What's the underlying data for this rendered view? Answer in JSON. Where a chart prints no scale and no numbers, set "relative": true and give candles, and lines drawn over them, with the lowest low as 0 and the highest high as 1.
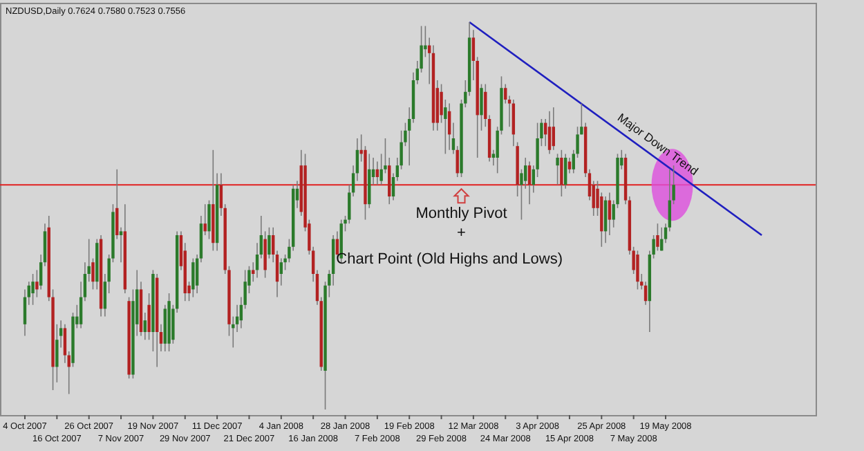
{
  "chart_data": {
    "type": "candlestick",
    "title": "NZDUSD,Daily 0.7624 0.7580 0.7523 0.7556",
    "relative": true,
    "categories": [
      "4 Oct 2007",
      null,
      null,
      null,
      null,
      null,
      null,
      null,
      "16 Oct 2007",
      null,
      null,
      null,
      null,
      null,
      null,
      null,
      "26 Oct 2007",
      null,
      null,
      null,
      null,
      null,
      null,
      null,
      "7 Nov 2007",
      null,
      null,
      null,
      null,
      null,
      null,
      null,
      "19 Nov 2007",
      null,
      null,
      null,
      null,
      null,
      null,
      null,
      "29 Nov 2007",
      null,
      null,
      null,
      null,
      null,
      null,
      null,
      "11 Dec 2007",
      null,
      null,
      null,
      null,
      null,
      null,
      null,
      "21 Dec 2007",
      null,
      null,
      null,
      null,
      null,
      null,
      null,
      "4 Jan 2008",
      null,
      null,
      null,
      null,
      null,
      null,
      null,
      "16 Jan 2008",
      null,
      null,
      null,
      null,
      null,
      null,
      null,
      "28 Jan 2008",
      null,
      null,
      null,
      null,
      null,
      null,
      null,
      "7 Feb 2008",
      null,
      null,
      null,
      null,
      null,
      null,
      null,
      "19 Feb 2008",
      null,
      null,
      null,
      null,
      null,
      null,
      null,
      "29 Feb 2008",
      null,
      null,
      null,
      null,
      null,
      null,
      null,
      "12 Mar 2008",
      null,
      null,
      null,
      null,
      null,
      null,
      null,
      "24 Mar 2008",
      null,
      null,
      null,
      null,
      null,
      null,
      null,
      "3 Apr 2008",
      null,
      null,
      null,
      null,
      null,
      null,
      null,
      "15 Apr 2008",
      null,
      null,
      null,
      null,
      null,
      null,
      null,
      "25 Apr 2008",
      null,
      null,
      null,
      null,
      null,
      null,
      null,
      "7 May 2008",
      null,
      null,
      null,
      null,
      null,
      null,
      null,
      "19 May 2008",
      null,
      null,
      null,
      null,
      null,
      null,
      null,
      null,
      null,
      null,
      null,
      null,
      null,
      null,
      null,
      null,
      null,
      null,
      null,
      null,
      null,
      null,
      null,
      null,
      null,
      null,
      null,
      null,
      null,
      null,
      null,
      null,
      null,
      null
    ],
    "colors": [
      "#2b7a2b",
      "#2b7a2b",
      "#2b7a2b",
      "#b22222",
      "#2b7a2b",
      "#2b7a2b",
      "#b22222",
      "#b22222",
      "#2b7a2b",
      "#2b7a2b",
      "#b22222",
      "#b22222",
      "#2b7a2b",
      "#2b7a2b",
      "#2b7a2b",
      "#2b7a2b",
      "#2b7a2b",
      "#b22222",
      "#2b7a2b",
      "#b22222",
      "#2b7a2b",
      "#2b7a2b",
      "#2b7a2b",
      "#b22222",
      "#2b7a2b",
      "#b22222",
      "#b22222",
      "#2b7a2b",
      "#2b7a2b",
      "#b22222",
      "#2b7a2b",
      "#b22222",
      "#2b7a2b",
      "#b22222",
      "#b22222",
      "#2b7a2b",
      "#2b7a2b",
      "#2b7a2b",
      "#2b7a2b",
      "#b22222",
      "#b22222",
      "#b22222",
      "#2b7a2b",
      "#2b7a2b",
      "#2b7a2b",
      "#b22222",
      "#2b7a2b",
      "#b22222",
      "#2b7a2b",
      "#b22222",
      "#b22222",
      "#b22222",
      "#2b7a2b",
      "#2b7a2b",
      "#2b7a2b",
      "#2b7a2b",
      "#2b7a2b",
      "#b22222",
      "#2b7a2b",
      "#2b7a2b",
      "#b22222",
      "#2b7a2b",
      "#b22222",
      "#b22222",
      "#2b7a2b",
      "#2b7a2b",
      "#2b7a2b",
      "#2b7a2b",
      "#2b7a2b",
      "#b22222",
      "#b22222",
      "#b22222",
      "#b22222",
      "#b22222",
      "#b22222",
      "#2b7a2b",
      "#2b7a2b",
      "#2b7a2b",
      "#b22222",
      "#2b7a2b",
      "#2b7a2b",
      "#2b7a2b",
      "#2b7a2b",
      "#2b7a2b",
      "#b22222",
      "#b22222",
      "#2b7a2b",
      "#2b7a2b",
      "#b22222",
      "#2b7a2b",
      "#2b7a2b",
      "#b22222",
      "#2b7a2b",
      "#2b7a2b",
      "#2b7a2b",
      "#2b7a2b",
      "#2b7a2b",
      "#2b7a2b",
      "#2b7a2b",
      "#2b7a2b",
      "#2b7a2b",
      "#b22222",
      "#b22222",
      "#b22222",
      "#b22222",
      "#2b7a2b",
      "#b22222",
      "#2b7a2b",
      "#b22222",
      "#2b7a2b",
      "#2b7a2b",
      "#2b7a2b",
      "#b22222",
      "#b22222",
      "#2b7a2b",
      "#b22222",
      "#b22222",
      "#2b7a2b",
      "#2b7a2b",
      "#2b7a2b",
      "#b22222",
      "#b22222",
      "#b22222",
      "#b22222",
      "#2b7a2b",
      "#2b7a2b",
      "#b22222",
      "#2b7a2b",
      "#2b7a2b",
      "#2b7a2b",
      "#b22222",
      "#b22222",
      "#b22222",
      "#2b7a2b",
      "#b22222",
      "#2b7a2b",
      "#b22222",
      "#2b7a2b",
      "#2b7a2b",
      "#2b7a2b",
      "#b22222",
      "#b22222",
      "#b22222",
      "#b22222",
      "#b22222",
      "#2b7a2b",
      "#b22222",
      "#2b7a2b",
      "#2b7a2b",
      "#2b7a2b",
      "#b22222",
      "#b22222",
      "#b22222",
      "#b22222",
      "#b22222",
      "#b22222",
      "#2b7a2b",
      "#2b7a2b",
      "#b22222",
      "#2b7a2b",
      "#2b7a2b",
      "#2b7a2b",
      "#2b7a2b",
      null,
      null,
      null,
      null,
      null,
      null,
      null,
      null,
      null,
      null,
      null,
      null,
      null,
      null,
      null,
      null,
      null,
      null,
      null,
      null,
      null,
      null,
      null,
      null,
      null,
      null,
      null,
      null,
      null,
      null,
      null,
      null
    ],
    "ohlc": [
      [
        0.22,
        0.31,
        0.19,
        0.29
      ],
      [
        0.29,
        0.33,
        0.27,
        0.32
      ],
      [
        0.3,
        0.35,
        0.27,
        0.33
      ],
      [
        0.33,
        0.36,
        0.29,
        0.31
      ],
      [
        0.32,
        0.4,
        0.31,
        0.38
      ],
      [
        0.38,
        0.48,
        0.37,
        0.46
      ],
      [
        0.47,
        0.5,
        0.28,
        0.29
      ],
      [
        0.29,
        0.31,
        0.05,
        0.11
      ],
      [
        0.11,
        0.22,
        0.07,
        0.18
      ],
      [
        0.19,
        0.23,
        0.16,
        0.21
      ],
      [
        0.21,
        0.22,
        0.12,
        0.14
      ],
      [
        0.14,
        0.15,
        0.04,
        0.11
      ],
      [
        0.12,
        0.25,
        0.11,
        0.24
      ],
      [
        0.22,
        0.27,
        0.21,
        0.24
      ],
      [
        0.22,
        0.33,
        0.21,
        0.29
      ],
      [
        0.29,
        0.38,
        0.28,
        0.35
      ],
      [
        0.35,
        0.44,
        0.33,
        0.37
      ],
      [
        0.38,
        0.39,
        0.31,
        0.33
      ],
      [
        0.33,
        0.44,
        0.31,
        0.43
      ],
      [
        0.44,
        0.45,
        0.24,
        0.26
      ],
      [
        0.26,
        0.35,
        0.24,
        0.33
      ],
      [
        0.33,
        0.4,
        0.3,
        0.39
      ],
      [
        0.39,
        0.53,
        0.38,
        0.51
      ],
      [
        0.52,
        0.62,
        0.44,
        0.45
      ],
      [
        0.45,
        0.47,
        0.38,
        0.46
      ],
      [
        0.46,
        0.53,
        0.3,
        0.31
      ],
      [
        0.28,
        0.29,
        0.08,
        0.09
      ],
      [
        0.09,
        0.31,
        0.08,
        0.28
      ],
      [
        0.22,
        0.36,
        0.19,
        0.31
      ],
      [
        0.31,
        0.33,
        0.19,
        0.2
      ],
      [
        0.2,
        0.25,
        0.18,
        0.23
      ],
      [
        0.27,
        0.3,
        0.18,
        0.2
      ],
      [
        0.2,
        0.36,
        0.15,
        0.35
      ],
      [
        0.34,
        0.35,
        0.11,
        0.2
      ],
      [
        0.2,
        0.22,
        0.15,
        0.17
      ],
      [
        0.17,
        0.27,
        0.15,
        0.26
      ],
      [
        0.17,
        0.3,
        0.15,
        0.28
      ],
      [
        0.18,
        0.27,
        0.17,
        0.26
      ],
      [
        0.26,
        0.46,
        0.25,
        0.45
      ],
      [
        0.45,
        0.46,
        0.36,
        0.37
      ],
      [
        0.41,
        0.43,
        0.28,
        0.3
      ],
      [
        0.32,
        0.33,
        0.28,
        0.3
      ],
      [
        0.31,
        0.39,
        0.29,
        0.38
      ],
      [
        0.32,
        0.4,
        0.3,
        0.39
      ],
      [
        0.39,
        0.5,
        0.38,
        0.48
      ],
      [
        0.48,
        0.53,
        0.45,
        0.46
      ],
      [
        0.46,
        0.54,
        0.44,
        0.53
      ],
      [
        0.53,
        0.67,
        0.41,
        0.43
      ],
      [
        0.43,
        0.61,
        0.41,
        0.58
      ],
      [
        0.58,
        0.61,
        0.5,
        0.52
      ],
      [
        0.52,
        0.53,
        0.35,
        0.36
      ],
      [
        0.36,
        0.37,
        0.19,
        0.22
      ],
      [
        0.21,
        0.24,
        0.16,
        0.22
      ],
      [
        0.22,
        0.27,
        0.2,
        0.24
      ],
      [
        0.23,
        0.29,
        0.21,
        0.27
      ],
      [
        0.27,
        0.36,
        0.26,
        0.33
      ],
      [
        0.32,
        0.37,
        0.3,
        0.36
      ],
      [
        0.36,
        0.38,
        0.33,
        0.35
      ],
      [
        0.36,
        0.43,
        0.34,
        0.4
      ],
      [
        0.4,
        0.5,
        0.39,
        0.45
      ],
      [
        0.44,
        0.46,
        0.34,
        0.36
      ],
      [
        0.4,
        0.47,
        0.39,
        0.45
      ],
      [
        0.45,
        0.47,
        0.38,
        0.4
      ],
      [
        0.4,
        0.41,
        0.29,
        0.33
      ],
      [
        0.35,
        0.39,
        0.32,
        0.38
      ],
      [
        0.38,
        0.4,
        0.36,
        0.39
      ],
      [
        0.39,
        0.44,
        0.38,
        0.42
      ],
      [
        0.42,
        0.58,
        0.41,
        0.57
      ],
      [
        0.54,
        0.59,
        0.52,
        0.57
      ],
      [
        0.63,
        0.67,
        0.5,
        0.51
      ],
      [
        0.63,
        0.66,
        0.46,
        0.47
      ],
      [
        0.48,
        0.49,
        0.4,
        0.41
      ],
      [
        0.41,
        0.42,
        0.33,
        0.35
      ],
      [
        0.35,
        0.36,
        0.27,
        0.28
      ],
      [
        0.28,
        0.29,
        0.1,
        0.11
      ],
      [
        0.1,
        0.33,
        0,
        0.32
      ],
      [
        0.32,
        0.36,
        0.29,
        0.35
      ],
      [
        0.35,
        0.45,
        0.32,
        0.44
      ],
      [
        0.44,
        0.46,
        0.39,
        0.4
      ],
      [
        0.39,
        0.49,
        0.38,
        0.48
      ],
      [
        0.48,
        0.5,
        0.46,
        0.49
      ],
      [
        0.49,
        0.58,
        0.48,
        0.56
      ],
      [
        0.56,
        0.63,
        0.55,
        0.61
      ],
      [
        0.61,
        0.7,
        0.59,
        0.67
      ],
      [
        0.67,
        0.71,
        0.64,
        0.66
      ],
      [
        0.67,
        0.68,
        0.49,
        0.53
      ],
      [
        0.53,
        0.66,
        0.52,
        0.62
      ],
      [
        0.6,
        0.65,
        0.58,
        0.62
      ],
      [
        0.62,
        0.64,
        0.58,
        0.6
      ],
      [
        0.59,
        0.66,
        0.58,
        0.62
      ],
      [
        0.62,
        0.7,
        0.61,
        0.63
      ],
      [
        0.63,
        0.65,
        0.53,
        0.55
      ],
      [
        0.55,
        0.61,
        0.54,
        0.6
      ],
      [
        0.6,
        0.65,
        0.59,
        0.63
      ],
      [
        0.63,
        0.72,
        0.62,
        0.69
      ],
      [
        0.69,
        0.74,
        0.68,
        0.72
      ],
      [
        0.72,
        0.78,
        0.63,
        0.75
      ],
      [
        0.75,
        0.87,
        0.74,
        0.85
      ],
      [
        0.85,
        0.9,
        0.84,
        0.88
      ],
      [
        0.88,
        0.99,
        0.87,
        0.94
      ],
      [
        0.93,
        0.99,
        0.91,
        0.94
      ],
      [
        0.94,
        0.96,
        0.84,
        0.92
      ],
      [
        0.92,
        0.94,
        0.72,
        0.74
      ],
      [
        0.83,
        0.85,
        0.72,
        0.74
      ],
      [
        0.82,
        0.84,
        0.74,
        0.76
      ],
      [
        0.75,
        0.8,
        0.66,
        0.78
      ],
      [
        0.77,
        0.79,
        0.67,
        0.71
      ],
      [
        0.67,
        0.74,
        0.66,
        0.7
      ],
      [
        0.67,
        0.68,
        0.6,
        0.61
      ],
      [
        0.61,
        0.8,
        0.6,
        0.79
      ],
      [
        0.79,
        0.85,
        0.78,
        0.82
      ],
      [
        0.82,
        1,
        0.81,
        0.96
      ],
      [
        0.96,
        0.98,
        0.85,
        0.9
      ],
      [
        0.9,
        0.91,
        0.65,
        0.76
      ],
      [
        0.76,
        0.84,
        0.72,
        0.83
      ],
      [
        0.82,
        0.84,
        0.73,
        0.75
      ],
      [
        0.75,
        0.76,
        0.64,
        0.65
      ],
      [
        0.65,
        0.67,
        0.63,
        0.66
      ],
      [
        0.65,
        0.73,
        0.61,
        0.72
      ],
      [
        0.72,
        0.86,
        0.71,
        0.83
      ],
      [
        0.83,
        0.84,
        0.79,
        0.8
      ],
      [
        0.8,
        0.81,
        0.73,
        0.79
      ],
      [
        0.79,
        0.8,
        0.68,
        0.71
      ],
      [
        0.68,
        0.69,
        0.55,
        0.58
      ],
      [
        0.58,
        0.62,
        0.49,
        0.61
      ],
      [
        0.59,
        0.65,
        0.57,
        0.63
      ],
      [
        0.63,
        0.64,
        0.53,
        0.58
      ],
      [
        0.58,
        0.63,
        0.56,
        0.62
      ],
      [
        0.62,
        0.74,
        0.6,
        0.7
      ],
      [
        0.7,
        0.75,
        0.68,
        0.74
      ],
      [
        0.74,
        0.75,
        0.68,
        0.71
      ],
      [
        0.73,
        0.77,
        0.66,
        0.67
      ],
      [
        0.73,
        0.78,
        0.67,
        0.68
      ],
      [
        0.63,
        0.66,
        0.58,
        0.65
      ],
      [
        0.65,
        0.67,
        0.55,
        0.58
      ],
      [
        0.58,
        0.66,
        0.57,
        0.65
      ],
      [
        0.64,
        0.65,
        0.61,
        0.62
      ],
      [
        0.62,
        0.67,
        0.61,
        0.66
      ],
      [
        0.66,
        0.73,
        0.65,
        0.71
      ],
      [
        0.71,
        0.79,
        0.71,
        0.73
      ],
      [
        0.73,
        0.74,
        0.6,
        0.61
      ],
      [
        0.61,
        0.62,
        0.54,
        0.55
      ],
      [
        0.58,
        0.59,
        0.5,
        0.52
      ],
      [
        0.57,
        0.59,
        0.5,
        0.52
      ],
      [
        0.55,
        0.56,
        0.42,
        0.46
      ],
      [
        0.46,
        0.55,
        0.43,
        0.54
      ],
      [
        0.54,
        0.56,
        0.45,
        0.49
      ],
      [
        0.49,
        0.54,
        0.47,
        0.53
      ],
      [
        0.53,
        0.66,
        0.52,
        0.65
      ],
      [
        0.63,
        0.67,
        0.62,
        0.65
      ],
      [
        0.65,
        0.66,
        0.53,
        0.54
      ],
      [
        0.54,
        0.55,
        0.4,
        0.41
      ],
      [
        0.41,
        0.42,
        0.35,
        0.36
      ],
      [
        0.4,
        0.41,
        0.31,
        0.33
      ],
      [
        0.33,
        0.35,
        0.31,
        0.32
      ],
      [
        0.32,
        0.33,
        0.27,
        0.28
      ],
      [
        0.28,
        0.41,
        0.2,
        0.4
      ],
      [
        0.4,
        0.45,
        0.39,
        0.44
      ],
      [
        0.45,
        0.48,
        0.41,
        0.42
      ],
      [
        0.41,
        0.47,
        0.41,
        0.44
      ],
      [
        0.44,
        0.48,
        0.43,
        0.47
      ],
      [
        0.47,
        0.62,
        0.46,
        0.54
      ],
      [
        0.54,
        0.63,
        0.53,
        0.58
      ],
      null,
      null,
      null,
      null,
      null,
      null,
      null,
      null,
      null,
      null,
      null,
      null,
      null,
      null,
      null,
      null,
      null,
      null,
      null,
      null,
      null,
      null,
      null,
      null,
      null,
      null,
      null,
      null,
      null,
      null,
      null,
      null
    ],
    "series": [
      {
        "type": "line",
        "name": "Major Down Trend",
        "color": "#1f1fbf",
        "values": [
          null,
          null,
          null,
          null,
          null,
          null,
          null,
          null,
          null,
          null,
          null,
          null,
          null,
          null,
          null,
          null,
          null,
          null,
          null,
          null,
          null,
          null,
          null,
          null,
          null,
          null,
          null,
          null,
          null,
          null,
          null,
          null,
          null,
          null,
          null,
          null,
          null,
          null,
          null,
          null,
          null,
          null,
          null,
          null,
          null,
          null,
          null,
          null,
          null,
          null,
          null,
          null,
          null,
          null,
          null,
          null,
          null,
          null,
          null,
          null,
          null,
          null,
          null,
          null,
          null,
          null,
          null,
          null,
          null,
          null,
          null,
          null,
          null,
          null,
          null,
          null,
          null,
          null,
          null,
          null,
          null,
          null,
          null,
          null,
          null,
          null,
          null,
          null,
          null,
          null,
          null,
          null,
          null,
          null,
          null,
          null,
          null,
          null,
          null,
          null,
          null,
          null,
          null,
          null,
          null,
          null,
          null,
          null,
          null,
          null,
          null,
          1,
          null,
          null,
          null,
          null,
          null,
          null,
          null,
          null,
          null,
          null,
          null,
          null,
          null,
          null,
          null,
          null,
          null,
          null,
          null,
          null,
          null,
          null,
          null,
          null,
          null,
          null,
          null,
          null,
          null,
          null,
          null,
          null,
          null,
          null,
          null,
          null,
          null,
          null,
          null,
          null,
          null,
          null,
          null,
          null,
          null,
          null,
          null,
          null,
          null,
          null,
          null,
          null,
          null,
          null,
          null,
          null,
          null,
          null,
          null,
          null,
          null,
          null,
          null,
          null,
          null,
          null,
          null,
          null,
          null,
          null,
          null,
          null,
          0.45,
          null,
          null,
          null,
          null,
          null,
          null,
          null,
          null,
          null,
          null
        ]
      }
    ],
    "ref_lines": [
      {
        "axis": "y",
        "value": 0.58,
        "color": "#e02020"
      }
    ],
    "annotations": [
      "Monthly Pivot",
      "+",
      "Chart Point (Old Highs and Lows)"
    ]
  }
}
